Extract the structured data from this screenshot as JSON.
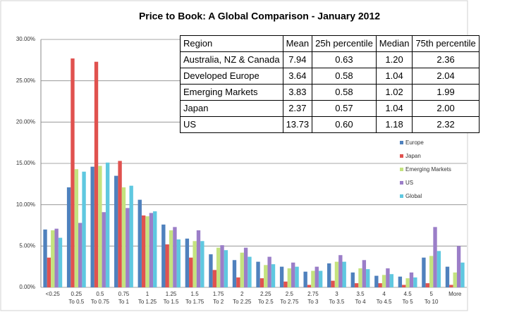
{
  "chart_data": {
    "type": "bar",
    "title": "Price to Book: A Global  Comparison - January 2012",
    "categories": [
      "<0.25",
      "0.25 To 0.5",
      "0.5 To 0.75",
      "0.75 To 1",
      "1 To 1.25",
      "1.25 To 1.5",
      "1.5 To 1.75",
      "1.75 To 2",
      "2 To 2.25",
      "2.25 To 2.5",
      "2.5 To 2.75",
      "2.75 To 3",
      "3 To 3.5",
      "3.5 To 4",
      "4 To 4.5",
      "4.5 To 5",
      "5 To 10",
      "More"
    ],
    "series": [
      {
        "name": "Europe",
        "color": "#4f81bd",
        "values": [
          7.0,
          12.1,
          14.6,
          13.5,
          10.6,
          7.6,
          5.9,
          4.0,
          3.3,
          3.1,
          2.5,
          1.9,
          2.9,
          1.8,
          1.4,
          1.3,
          3.6,
          2.5
        ]
      },
      {
        "name": "Japan",
        "color": "#e0524f",
        "values": [
          3.6,
          27.7,
          27.3,
          15.3,
          8.7,
          5.2,
          3.6,
          2.1,
          1.2,
          1.1,
          0.7,
          0.3,
          0.8,
          0.5,
          0.5,
          0.3,
          0.5,
          0.3
        ]
      },
      {
        "name": "Emerging Markets",
        "color": "#c4e37f",
        "values": [
          6.9,
          14.3,
          14.7,
          12.1,
          8.6,
          6.9,
          5.6,
          4.8,
          4.2,
          2.7,
          2.3,
          2.0,
          3.1,
          2.3,
          1.5,
          1.1,
          3.8,
          1.8
        ]
      },
      {
        "name": "US",
        "color": "#9b7ec8",
        "values": [
          7.1,
          7.8,
          9.1,
          9.6,
          9.0,
          7.3,
          6.9,
          5.1,
          4.8,
          3.7,
          3.0,
          2.5,
          3.9,
          3.3,
          2.3,
          1.8,
          7.3,
          5.0
        ]
      },
      {
        "name": "Global",
        "color": "#5fc8e0",
        "values": [
          6.0,
          14.0,
          15.1,
          12.3,
          9.2,
          5.8,
          5.6,
          4.5,
          3.7,
          2.8,
          2.5,
          2.0,
          3.1,
          2.2,
          1.6,
          1.2,
          4.4,
          3.0
        ]
      }
    ],
    "ylim": [
      0,
      30
    ],
    "yticks": [
      {
        "value": 0,
        "label": "0.00%"
      },
      {
        "value": 5,
        "label": "5.00%"
      },
      {
        "value": 10,
        "label": "10.00%"
      },
      {
        "value": 15,
        "label": "15.00%"
      },
      {
        "value": 20,
        "label": "20.00%"
      },
      {
        "value": 25,
        "label": "25.00%"
      },
      {
        "value": 30,
        "label": "30.00%"
      }
    ],
    "grid": true,
    "legend": "right",
    "table": {
      "header": [
        "Region",
        "Mean",
        "25h percentile",
        "Median",
        "75th percentile"
      ],
      "rows": [
        [
          "Australia, NZ & Canada",
          "7.94",
          "0.63",
          "1.20",
          "2.36"
        ],
        [
          "Developed Europe",
          "3.64",
          "0.58",
          "1.04",
          "2.04"
        ],
        [
          "Emerging Markets",
          "3.83",
          "0.58",
          "1.02",
          "1.99"
        ],
        [
          "Japan",
          "2.37",
          "0.57",
          "1.04",
          "2.00"
        ],
        [
          "US",
          "13.73",
          "0.60",
          "1.18",
          "2.32"
        ]
      ]
    }
  }
}
